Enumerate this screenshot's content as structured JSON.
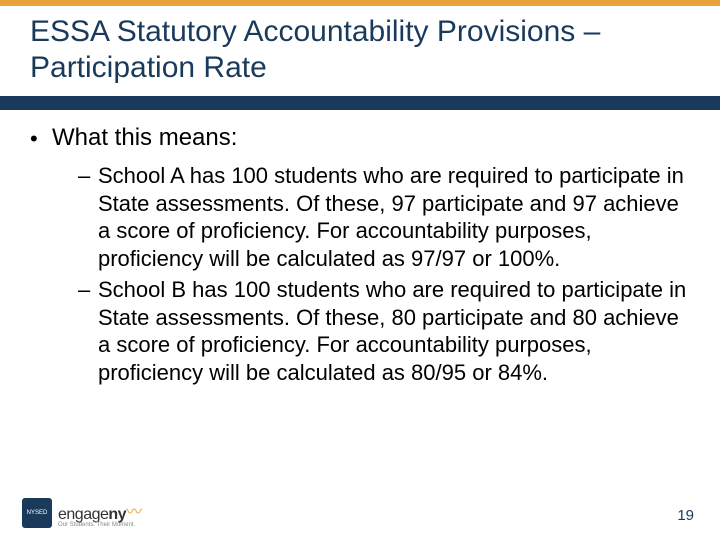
{
  "colors": {
    "accent_gold": "#e8a33d",
    "title_text": "#1a3a5c",
    "title_underbar": "#1a3a5c",
    "body_text": "#000000",
    "background": "#ffffff",
    "pagenum": "#1a3a5c"
  },
  "title": "ESSA Statutory Accountability Provisions – Participation Rate",
  "bullets": {
    "l1": "What this means:",
    "l2a": "School A has 100 students who are required to participate in State assessments.  Of these, 97 participate and 97 achieve a score of proficiency. For accountability purposes, proficiency will be calculated as 97/97 or 100%.",
    "l2b": "School B has 100 students who are required to participate in State assessments. Of these, 80 participate and 80 achieve a score of proficiency. For accountability purposes, proficiency will be calculated as 80/95 or 84%."
  },
  "footer": {
    "nysed": "NYSED",
    "engage_prefix": "engage",
    "engage_suffix": "ny",
    "engage_tag": "Our Students. Their Moment.",
    "page_number": "19"
  }
}
